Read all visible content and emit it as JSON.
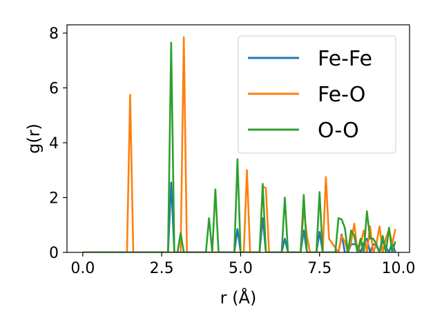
{
  "chart_data": {
    "type": "line",
    "title": "",
    "xlabel": "r (Å)",
    "ylabel": "g(r)",
    "xlim": [
      -0.5,
      10.35
    ],
    "ylim": [
      0,
      8.3
    ],
    "xticks": [
      0.0,
      2.5,
      5.0,
      7.5,
      10.0
    ],
    "xtick_labels": [
      "0.0",
      "2.5",
      "5.0",
      "7.5",
      "10.0"
    ],
    "yticks": [
      0,
      2,
      4,
      6,
      8
    ],
    "ytick_labels": [
      "0",
      "2",
      "4",
      "6",
      "8"
    ],
    "grid": false,
    "legend_position": "top-right",
    "series": [
      {
        "name": "Fe-Fe",
        "color": "#1f77b4",
        "x": [
          0,
          2.7,
          2.8,
          2.9,
          4.8,
          4.9,
          5.0,
          5.6,
          5.7,
          5.8,
          6.3,
          6.4,
          6.5,
          6.9,
          7.0,
          7.1,
          7.4,
          7.5,
          7.6,
          8.1,
          8.2,
          8.3,
          8.4,
          8.5,
          8.6,
          8.7,
          8.8,
          8.9,
          9.0,
          9.1,
          9.2,
          9.3,
          9.4,
          9.5,
          9.6,
          9.7,
          9.8,
          9.9
        ],
        "y": [
          0,
          0,
          2.55,
          0,
          0,
          0.85,
          0,
          0,
          1.25,
          0,
          0,
          0.5,
          0,
          0,
          0.8,
          0,
          0,
          0.75,
          0,
          0,
          0.65,
          0,
          0,
          0.3,
          0.3,
          0.25,
          0,
          0.35,
          0.5,
          0,
          0.3,
          0.25,
          0,
          0.4,
          0.2,
          0,
          0.35,
          0
        ]
      },
      {
        "name": "Fe-O",
        "color": "#ff7f0e",
        "x": [
          0,
          1.4,
          1.5,
          1.6,
          3.1,
          3.2,
          3.3,
          5.1,
          5.2,
          5.3,
          5.6,
          5.7,
          5.8,
          5.9,
          6.9,
          7.0,
          7.1,
          7.2,
          7.6,
          7.7,
          7.8,
          8.1,
          8.2,
          8.3,
          8.4,
          8.5,
          8.6,
          8.7,
          8.8,
          8.9,
          9.0,
          9.1,
          9.2,
          9.3,
          9.4,
          9.5,
          9.6,
          9.7,
          9.8,
          9.9
        ],
        "y": [
          0,
          0,
          5.75,
          0,
          0,
          7.85,
          0,
          0,
          3.0,
          0,
          0,
          2.4,
          2.35,
          0,
          0,
          1.6,
          0.6,
          0,
          0,
          2.75,
          0.5,
          0,
          0.6,
          0.4,
          0,
          0.4,
          1.05,
          0,
          0.3,
          0.8,
          0,
          0.95,
          0,
          0.3,
          0.95,
          0,
          0.5,
          0.85,
          0.3,
          0.85
        ]
      },
      {
        "name": "O-O",
        "color": "#2ca02c",
        "x": [
          0,
          2.7,
          2.8,
          2.9,
          3.0,
          3.1,
          3.2,
          3.9,
          4.0,
          4.1,
          4.2,
          4.3,
          4.8,
          4.9,
          5.0,
          5.5,
          5.6,
          5.7,
          5.8,
          6.3,
          6.4,
          6.5,
          6.9,
          7.0,
          7.1,
          7.4,
          7.5,
          7.6,
          7.9,
          8.0,
          8.1,
          8.2,
          8.3,
          8.4,
          8.5,
          8.6,
          8.7,
          8.8,
          8.9,
          9.0,
          9.1,
          9.2,
          9.3,
          9.4,
          9.5,
          9.6,
          9.7,
          9.8,
          9.9
        ],
        "y": [
          0,
          0,
          7.65,
          0,
          0,
          0.7,
          0,
          0,
          1.25,
          0,
          2.3,
          0,
          0,
          3.4,
          0,
          0,
          0,
          2.5,
          0,
          0,
          2.0,
          0,
          0,
          2.1,
          0,
          0,
          2.2,
          0,
          0,
          0,
          1.25,
          1.2,
          0.9,
          0,
          0.8,
          0.6,
          0,
          0.5,
          0,
          1.5,
          0.5,
          0.5,
          0.3,
          0,
          0.6,
          0,
          0.9,
          0,
          0.4
        ]
      }
    ]
  }
}
